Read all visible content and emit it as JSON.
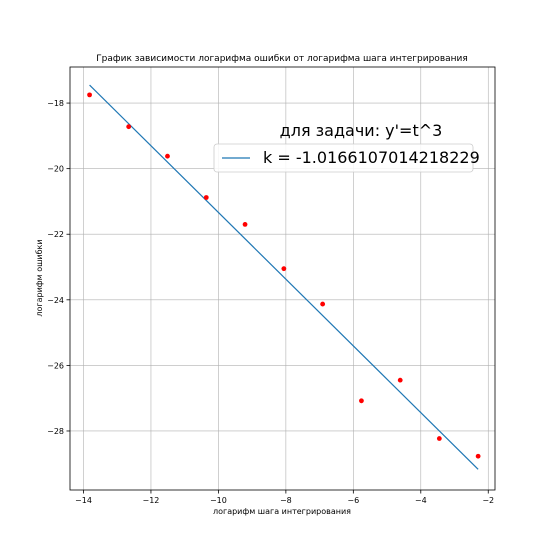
{
  "chart_data": {
    "type": "scatter",
    "title": "График зависимости логарифма ошибки от логарифма шага интегрирования",
    "xlabel": "логарифм шага интегрирования",
    "ylabel": "логарифм ошибки",
    "xlim": [
      -14.4,
      -1.8
    ],
    "ylim": [
      -29.8,
      -16.9
    ],
    "xticks": [
      -14,
      -12,
      -10,
      -8,
      -6,
      -4,
      -2
    ],
    "yticks": [
      -18,
      -20,
      -22,
      -24,
      -26,
      -28
    ],
    "grid": true,
    "legend_position": "upper-right",
    "legend_title": "для задачи: y'=t^3",
    "points": {
      "color": "#ff0000",
      "x": [
        -13.82,
        -12.66,
        -11.51,
        -10.36,
        -9.21,
        -8.06,
        -6.91,
        -5.76,
        -4.61,
        -3.45,
        -2.3
      ],
      "y": [
        -17.75,
        -18.72,
        -19.62,
        -20.88,
        -21.7,
        -23.05,
        -24.13,
        -27.08,
        -26.45,
        -28.23,
        -28.77
      ]
    },
    "line": {
      "name": "k = -1.0166107014218229",
      "color": "#1f77b4",
      "x": [
        -13.82,
        -2.3
      ],
      "y": [
        -17.45,
        -29.17
      ]
    }
  }
}
